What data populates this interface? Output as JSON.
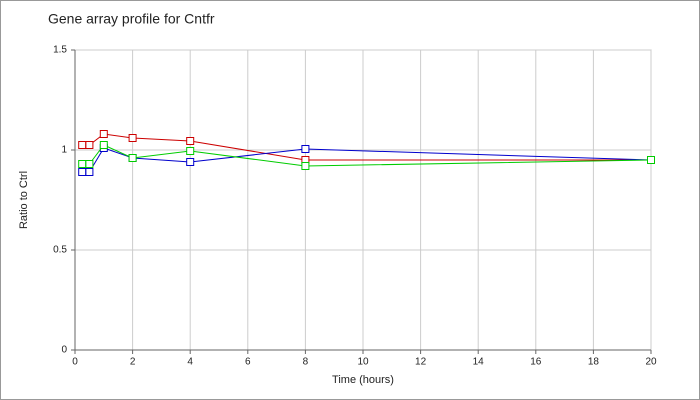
{
  "chart_data": {
    "type": "line",
    "title": "Gene array profile for Cntfr",
    "x_label": "Time (hours)",
    "y_label": "Ratio to Ctrl",
    "x": [
      0.25,
      0.5,
      1,
      2,
      4,
      8,
      20
    ],
    "series": [
      {
        "color": "#cc0000",
        "values": [
          1.025,
          1.025,
          1.08,
          1.06,
          1.045,
          0.95,
          0.95
        ]
      },
      {
        "color": "#0000cc",
        "values": [
          0.89,
          0.89,
          1.01,
          0.96,
          0.94,
          1.005,
          0.95
        ]
      },
      {
        "color": "#00cc00",
        "values": [
          0.93,
          0.93,
          1.025,
          0.96,
          0.995,
          0.92,
          0.95
        ]
      }
    ],
    "xlim": [
      0,
      20
    ],
    "xticks": [
      0,
      2,
      4,
      6,
      8,
      10,
      12,
      14,
      16,
      18,
      20
    ],
    "ylim": [
      0,
      1.5
    ],
    "yticks": [
      0,
      0.5,
      1,
      1.5
    ],
    "grid": true
  }
}
